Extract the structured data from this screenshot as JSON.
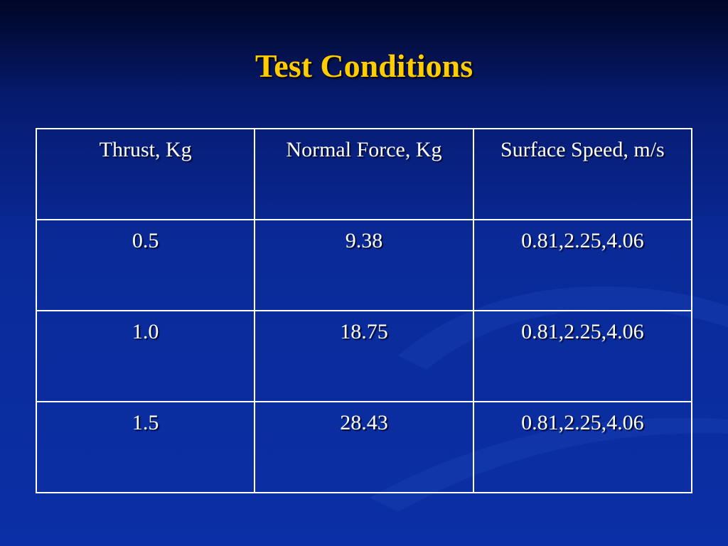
{
  "title": "Test Conditions",
  "table": {
    "header": [
      "Thrust, Kg",
      "Normal Force, Kg",
      "Surface Speed, m/s"
    ],
    "rows": [
      [
        "0.5",
        "9.38",
        "0.81,2.25,4.06"
      ],
      [
        "1.0",
        "18.75",
        "0.81,2.25,4.06"
      ],
      [
        "1.5",
        "28.43",
        "0.81,2.25,4.06"
      ]
    ]
  }
}
